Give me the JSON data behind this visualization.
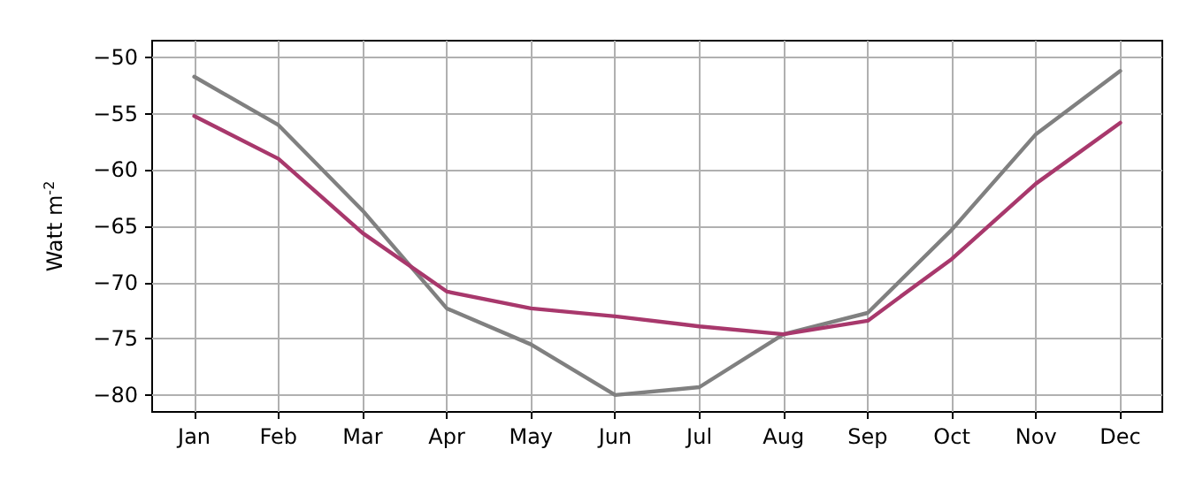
{
  "chart_data": {
    "type": "line",
    "ylabel": "Watt m$^{-2}$",
    "categories": [
      "Jan",
      "Feb",
      "Mar",
      "Apr",
      "May",
      "Jun",
      "Jul",
      "Aug",
      "Sep",
      "Oct",
      "Nov",
      "Dec"
    ],
    "series": [
      {
        "color": "#808080",
        "values": [
          -51.7,
          -56.0,
          -63.6,
          -72.3,
          -75.5,
          -80.0,
          -79.3,
          -74.6,
          -72.7,
          -65.3,
          -56.8,
          -51.2
        ]
      },
      {
        "color": "#a8386c",
        "values": [
          -55.2,
          -59.0,
          -65.6,
          -70.8,
          -72.3,
          -73.0,
          -73.9,
          -74.6,
          -73.4,
          -67.9,
          -61.2,
          -55.8
        ]
      }
    ],
    "ylim": [
      -81.5,
      -48.5
    ],
    "yticks": [
      -80,
      -75,
      -70,
      -65,
      -60,
      -55,
      -50
    ],
    "grid": true,
    "marker": "none",
    "line_style": "solid"
  }
}
